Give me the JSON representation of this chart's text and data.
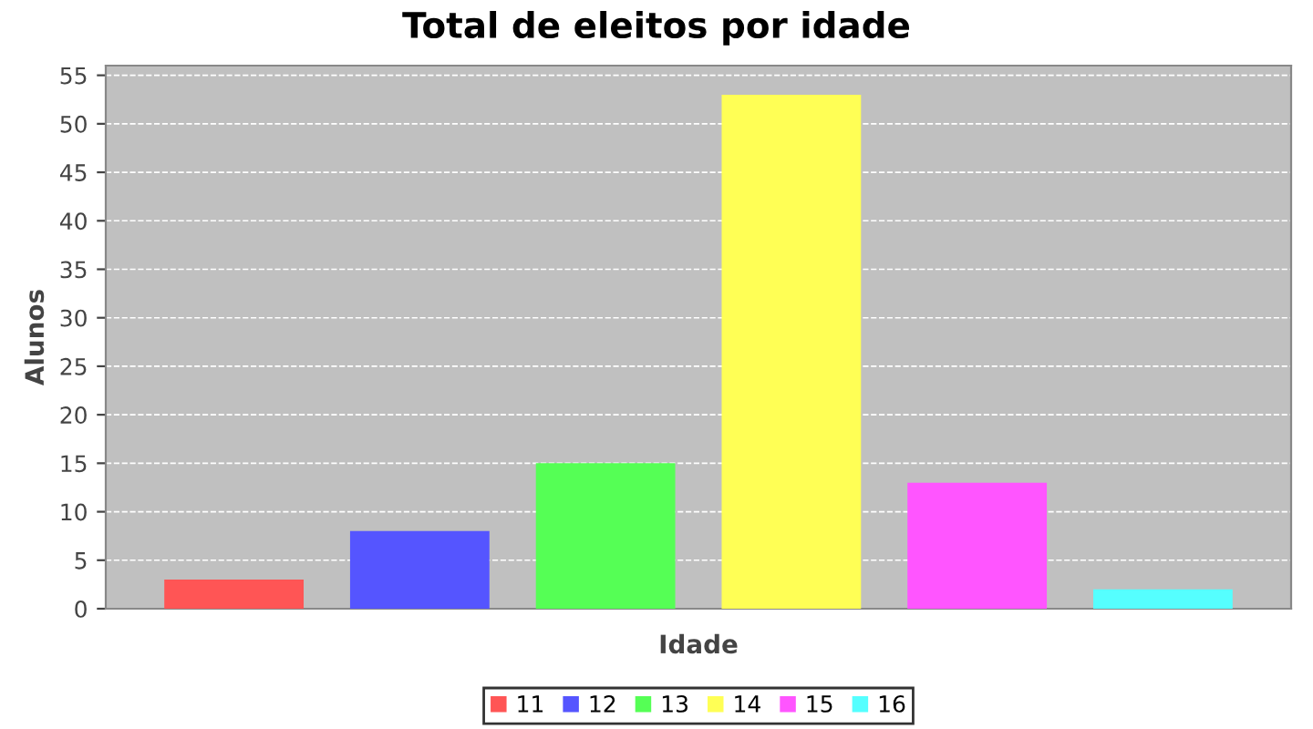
{
  "chart_data": {
    "type": "bar",
    "title": "Total de eleitos por idade",
    "xlabel": "Idade",
    "ylabel": "Alunos",
    "categories": [
      null
    ],
    "series": [
      {
        "name": "11",
        "color": "#ff5555",
        "values": [
          3
        ]
      },
      {
        "name": "12",
        "color": "#5555ff",
        "values": [
          8
        ]
      },
      {
        "name": "13",
        "color": "#55ff55",
        "values": [
          15
        ]
      },
      {
        "name": "14",
        "color": "#ffff55",
        "values": [
          53
        ]
      },
      {
        "name": "15",
        "color": "#ff55ff",
        "values": [
          13
        ]
      },
      {
        "name": "16",
        "color": "#55ffff",
        "values": [
          2
        ]
      }
    ],
    "ylim": [
      0,
      56
    ],
    "yticks": [
      0,
      5,
      10,
      15,
      20,
      25,
      30,
      35,
      40,
      45,
      50,
      55
    ],
    "grid": "y",
    "legend": "bottom"
  }
}
